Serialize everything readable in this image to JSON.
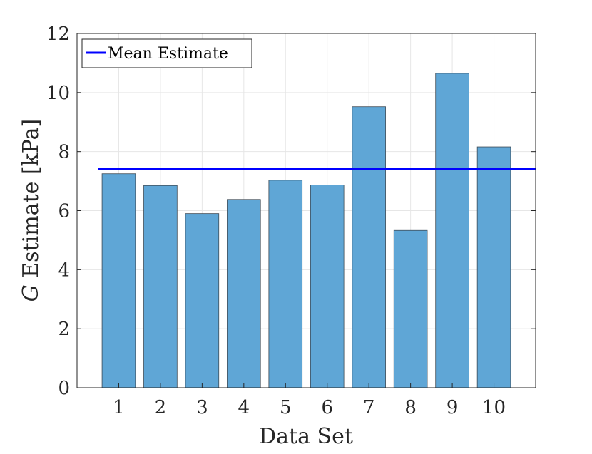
{
  "chart_data": {
    "type": "bar",
    "categories": [
      "1",
      "2",
      "3",
      "4",
      "5",
      "6",
      "7",
      "8",
      "9",
      "10"
    ],
    "values": [
      7.25,
      6.85,
      5.9,
      6.38,
      7.03,
      6.87,
      9.52,
      5.33,
      10.65,
      8.16
    ],
    "mean_line": {
      "name": "Mean Estimate",
      "value": 7.4
    },
    "xlabel": "Data Set",
    "ylabel_var": "G",
    "ylabel_rest": " Estimate [kPa]",
    "ylim": [
      0,
      12
    ],
    "yticks": [
      0,
      2,
      4,
      6,
      8,
      10,
      12
    ],
    "grid": true,
    "legend_position": "top-left",
    "colors": {
      "bar_fill": "#5fa6d6",
      "bar_stroke": "#3d4a55",
      "mean_line": "#0000ff",
      "grid": "#e6e6e6",
      "axis": "#262626"
    }
  }
}
